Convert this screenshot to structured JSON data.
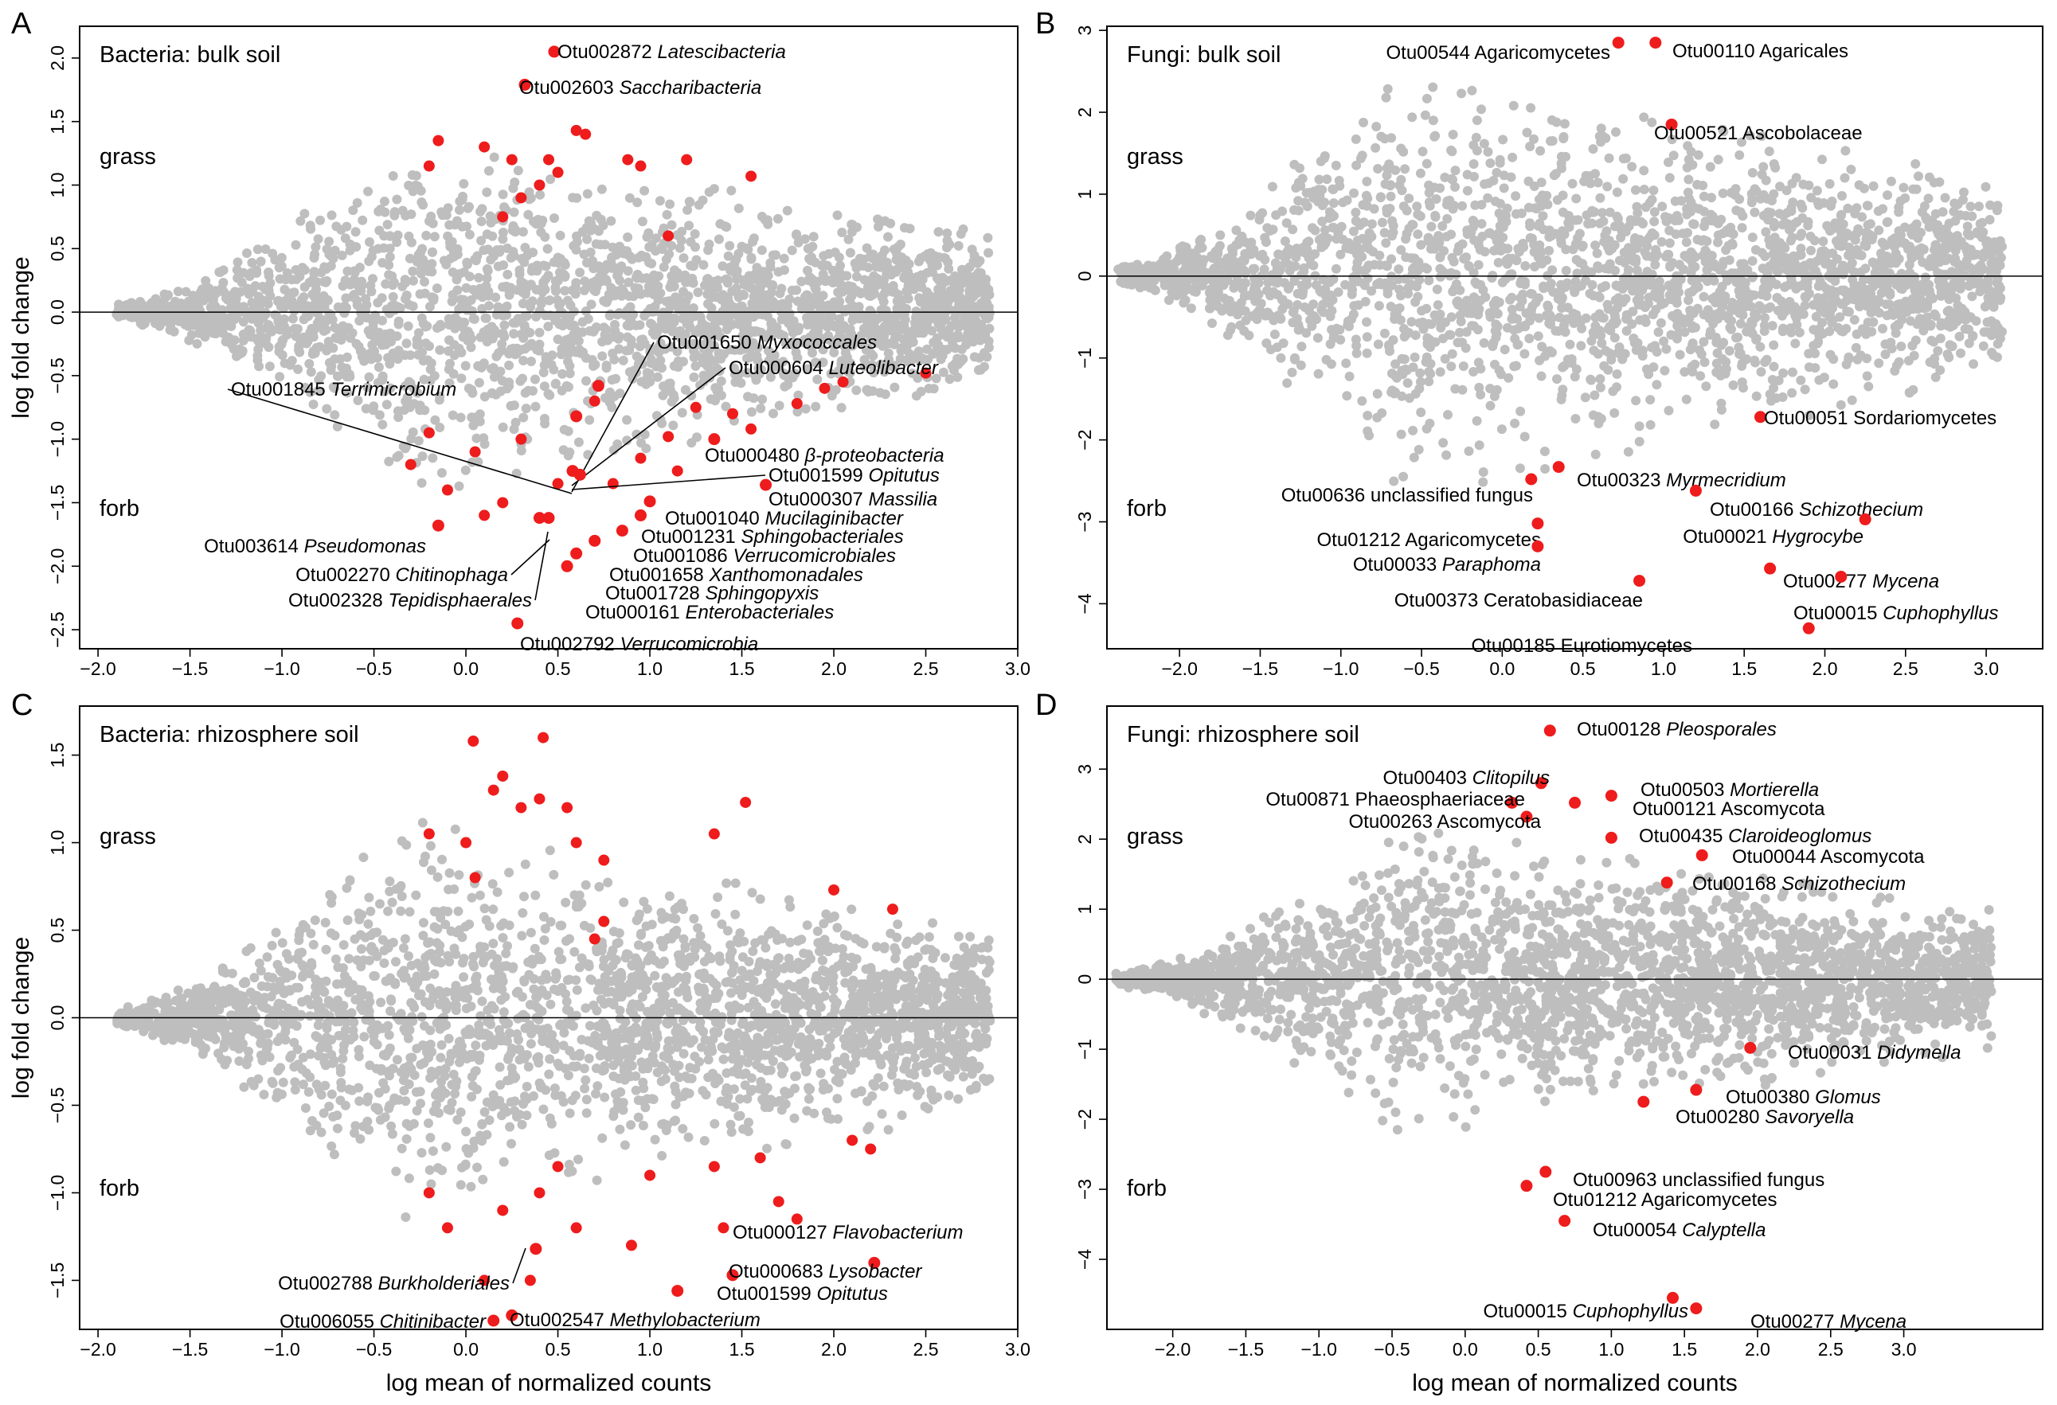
{
  "chart_data": [
    {
      "panel": "A",
      "type": "scatter",
      "title": "Bacteria: bulk soil",
      "xlabel": "",
      "ylabel": "log fold change",
      "xlim": [
        -2.1,
        3.0
      ],
      "ylim": [
        -2.65,
        2.25
      ],
      "xticks": [
        "-2.0",
        "-1.5",
        "-1.0",
        "-0.5",
        "0.0",
        "0.5",
        "1.0",
        "1.5",
        "2.0",
        "2.5",
        "3.0"
      ],
      "yticks": [
        "-2.5",
        "-2.0",
        "-1.5",
        "-1.0",
        "-0.5",
        "0.0",
        "0.5",
        "1.0",
        "1.5",
        "2.0"
      ],
      "group_labels": {
        "top": "grass",
        "bottom": "forb"
      },
      "background_cloud": {
        "x_min": -1.9,
        "x_max": 2.85,
        "ymax_at_peak": 1.4,
        "color": "#bebebe"
      },
      "highlighted": [
        {
          "x": 0.48,
          "y": 2.05,
          "label": "Otu002872",
          "taxon": "Latescibacteria",
          "italic": true
        },
        {
          "x": 0.32,
          "y": 1.79,
          "label": "Otu002603",
          "taxon": "Saccharibacteria",
          "italic": true
        },
        {
          "x": 0.6,
          "y": -0.82,
          "label": "Otu001650",
          "taxon": "Myxococcales",
          "italic": true
        },
        {
          "x": 0.72,
          "y": -0.58,
          "label": "Otu000604",
          "taxon": "Luteolibacter",
          "italic": true
        },
        {
          "x": 0.58,
          "y": -1.25,
          "label": "Otu001845",
          "taxon": "Terrimicrobium",
          "italic": true
        },
        {
          "x": 1.35,
          "y": -1.0,
          "label": "Otu000480",
          "taxon": "β-proteobacteria",
          "italic": true
        },
        {
          "x": 0.62,
          "y": -1.28,
          "label": "Otu001599",
          "taxon": "Opitutus",
          "italic": true
        },
        {
          "x": 1.63,
          "y": -1.36,
          "label": "Otu000307",
          "taxon": "Massilia",
          "italic": true
        },
        {
          "x": 1.0,
          "y": -1.49,
          "label": "Otu001040",
          "taxon": "Mucilaginibacter",
          "italic": true
        },
        {
          "x": 0.95,
          "y": -1.6,
          "label": "Otu001231",
          "taxon": "Sphingobacteriales",
          "italic": true
        },
        {
          "x": 0.85,
          "y": -1.72,
          "label": "Otu001086",
          "taxon": "Verrucomicrobiales",
          "italic": true
        },
        {
          "x": 0.7,
          "y": -1.8,
          "label": "Otu001658",
          "taxon": "Xanthomonadales",
          "italic": true
        },
        {
          "x": 0.6,
          "y": -1.9,
          "label": "Otu001728",
          "taxon": "Sphingopyxis",
          "italic": true
        },
        {
          "x": 0.55,
          "y": -2.0,
          "label": "Otu000161",
          "taxon": "Enterobacteriales",
          "italic": true
        },
        {
          "x": -0.15,
          "y": -1.68,
          "label": "Otu003614",
          "taxon": "Pseudomonas",
          "italic": true
        },
        {
          "x": 0.4,
          "y": -1.62,
          "label": "Otu002270",
          "taxon": "Chitinophaga",
          "italic": true
        },
        {
          "x": 0.45,
          "y": -1.62,
          "label": "Otu002328",
          "taxon": "Tepidisphaerales",
          "italic": true
        },
        {
          "x": 0.28,
          "y": -2.45,
          "label": "Otu002792",
          "taxon": "Verrucomicrobia",
          "italic": true
        }
      ],
      "extra_red": [
        [
          2.5,
          -0.48
        ],
        [
          2.05,
          -0.55
        ],
        [
          1.95,
          -0.6
        ],
        [
          1.8,
          -0.72
        ],
        [
          1.55,
          -0.92
        ],
        [
          1.1,
          -0.98
        ],
        [
          0.3,
          -1.0
        ],
        [
          0.05,
          -1.1
        ],
        [
          -0.1,
          -1.4
        ],
        [
          -0.3,
          -1.2
        ],
        [
          0.2,
          -1.5
        ],
        [
          0.8,
          -1.35
        ],
        [
          -0.2,
          -0.95
        ],
        [
          0.1,
          -1.6
        ],
        [
          1.55,
          1.07
        ],
        [
          1.2,
          1.2
        ],
        [
          0.88,
          1.2
        ],
        [
          0.95,
          1.15
        ],
        [
          0.65,
          1.4
        ],
        [
          0.6,
          1.43
        ],
        [
          0.45,
          1.2
        ],
        [
          0.25,
          1.2
        ],
        [
          0.1,
          1.3
        ],
        [
          -0.2,
          1.15
        ],
        [
          -0.15,
          1.35
        ],
        [
          0.3,
          0.9
        ],
        [
          0.5,
          1.1
        ],
        [
          0.2,
          0.75
        ],
        [
          1.1,
          0.6
        ],
        [
          0.4,
          1.0
        ],
        [
          0.7,
          -0.7
        ],
        [
          1.25,
          -0.75
        ],
        [
          1.45,
          -0.8
        ],
        [
          0.95,
          -1.15
        ],
        [
          1.15,
          -1.25
        ],
        [
          0.5,
          -1.35
        ]
      ]
    },
    {
      "panel": "B",
      "type": "scatter",
      "title": "Fungi: bulk soil",
      "xlabel": "",
      "ylabel": "",
      "xlim": [
        -2.45,
        3.35
      ],
      "ylim": [
        -4.55,
        3.05
      ],
      "xticks": [
        "-2.0",
        "-1.5",
        "-1.0",
        "-0.5",
        "0.0",
        "0.5",
        "1.0",
        "1.5",
        "2.0",
        "2.5",
        "3.0"
      ],
      "yticks": [
        "-4",
        "-3",
        "-2",
        "-1",
        "0",
        "1",
        "2",
        "3"
      ],
      "group_labels": {
        "top": "grass",
        "bottom": "forb"
      },
      "background_cloud": {
        "x_min": -2.4,
        "x_max": 3.1,
        "ymax_at_peak": 2.6,
        "color": "#bebebe"
      },
      "highlighted": [
        {
          "x": 0.72,
          "y": 2.85,
          "label": "Otu00544",
          "taxon": "Agaricomycetes",
          "italic": false
        },
        {
          "x": 0.95,
          "y": 2.85,
          "label": "Otu00110",
          "taxon": "Agaricales",
          "italic": false
        },
        {
          "x": 1.05,
          "y": 1.85,
          "label": "Otu00521",
          "taxon": "Ascobolaceae",
          "italic": false
        },
        {
          "x": 1.6,
          "y": -1.72,
          "label": "Otu00051",
          "taxon": "Sordariomycetes",
          "italic": false
        },
        {
          "x": 0.35,
          "y": -2.33,
          "label": "Otu00323",
          "taxon": "Myrmecridium",
          "italic": true
        },
        {
          "x": 0.18,
          "y": -2.48,
          "label": "Otu00636",
          "taxon": "unclassified fungus",
          "italic": false
        },
        {
          "x": 1.2,
          "y": -2.62,
          "label": "Otu00166",
          "taxon": "Schizothecium",
          "italic": true
        },
        {
          "x": 2.25,
          "y": -2.97,
          "label": "Otu00021",
          "taxon": "Hygrocybe",
          "italic": true
        },
        {
          "x": 0.22,
          "y": -3.02,
          "label": "Otu01212",
          "taxon": "Agaricomycetes",
          "italic": false
        },
        {
          "x": 0.22,
          "y": -3.3,
          "label": "Otu00033",
          "taxon": "Paraphoma",
          "italic": true
        },
        {
          "x": 1.66,
          "y": -3.57,
          "label": "Otu00277",
          "taxon": "Mycena",
          "italic": true
        },
        {
          "x": 0.85,
          "y": -3.72,
          "label": "Otu00373",
          "taxon": "Ceratobasidiaceae",
          "italic": false
        },
        {
          "x": 2.1,
          "y": -3.67,
          "label": "Otu00015",
          "taxon": "Cuphophyllus",
          "italic": true
        },
        {
          "x": 1.9,
          "y": -4.3,
          "label": "Otu00185",
          "taxon": "Eurotiomycetes",
          "italic": false
        }
      ],
      "extra_red": []
    },
    {
      "panel": "C",
      "type": "scatter",
      "title": "Bacteria: rhizosphere soil",
      "xlabel": "log mean of normalized counts",
      "ylabel": "log fold change",
      "xlim": [
        -2.1,
        3.0
      ],
      "ylim": [
        -1.78,
        1.78
      ],
      "xticks": [
        "-2.0",
        "-1.5",
        "-1.0",
        "-0.5",
        "0.0",
        "0.5",
        "1.0",
        "1.5",
        "2.0",
        "2.5",
        "3.0"
      ],
      "yticks": [
        "-1.5",
        "-1.0",
        "-0.5",
        "0.0",
        "0.5",
        "1.0",
        "1.5"
      ],
      "group_labels": {
        "top": "grass",
        "bottom": "forb"
      },
      "background_cloud": {
        "x_min": -1.9,
        "x_max": 2.85,
        "ymax_at_peak": 1.15,
        "color": "#bebebe"
      },
      "highlighted": [
        {
          "x": 2.22,
          "y": -1.4,
          "label": "Otu000127",
          "taxon": "Flavobacterium",
          "italic": true
        },
        {
          "x": 0.38,
          "y": -1.32,
          "label": "Otu002788",
          "taxon": "Burkholderiales",
          "italic": true
        },
        {
          "x": 1.45,
          "y": -1.47,
          "label": "Otu000683",
          "taxon": "Lysobacter",
          "italic": true
        },
        {
          "x": 1.15,
          "y": -1.56,
          "label": "Otu001599",
          "taxon": "Opitutus",
          "italic": true
        },
        {
          "x": 0.15,
          "y": -1.73,
          "label": "Otu006055",
          "taxon": "Chitinibacter",
          "italic": true
        },
        {
          "x": 0.25,
          "y": -1.7,
          "label": "Otu002547",
          "taxon": "Methylobacterium",
          "italic": true
        }
      ],
      "extra_red": [
        [
          0.04,
          1.58
        ],
        [
          0.42,
          1.6
        ],
        [
          1.52,
          1.23
        ],
        [
          1.35,
          1.05
        ],
        [
          2.0,
          0.73
        ],
        [
          2.32,
          0.62
        ],
        [
          0.2,
          1.38
        ],
        [
          0.15,
          1.3
        ],
        [
          0.3,
          1.2
        ],
        [
          0.55,
          1.2
        ],
        [
          0.0,
          1.0
        ],
        [
          -0.2,
          1.05
        ],
        [
          0.05,
          0.8
        ],
        [
          0.75,
          0.9
        ],
        [
          0.75,
          0.55
        ],
        [
          0.7,
          0.45
        ],
        [
          0.6,
          1.0
        ],
        [
          0.4,
          1.25
        ],
        [
          2.1,
          -0.7
        ],
        [
          2.2,
          -0.75
        ],
        [
          1.8,
          -1.15
        ],
        [
          1.7,
          -1.05
        ],
        [
          1.35,
          -0.85
        ],
        [
          1.0,
          -0.9
        ],
        [
          0.5,
          -0.85
        ],
        [
          0.4,
          -1.0
        ],
        [
          0.2,
          -1.1
        ],
        [
          -0.2,
          -1.0
        ],
        [
          -0.1,
          -1.2
        ],
        [
          0.6,
          -1.2
        ],
        [
          0.9,
          -1.3
        ],
        [
          0.1,
          -1.5
        ],
        [
          0.35,
          -1.5
        ],
        [
          1.4,
          -1.2
        ],
        [
          1.6,
          -0.8
        ]
      ]
    },
    {
      "panel": "D",
      "type": "scatter",
      "title": "Fungi: rhizosphere soil",
      "xlabel": "log mean of normalized counts",
      "ylabel": "",
      "xlim": [
        -2.45,
        3.95
      ],
      "ylim": [
        -5.0,
        3.9
      ],
      "xticks": [
        "-2.0",
        "-1.5",
        "-1.0",
        "-0.5",
        "0.0",
        "0.5",
        "1.0",
        "1.5",
        "2.0",
        "2.5",
        "3.0"
      ],
      "yticks": [
        "-4",
        "-3",
        "-2",
        "-1",
        "0",
        "1",
        "2",
        "3"
      ],
      "group_labels": {
        "top": "grass",
        "bottom": "forb"
      },
      "background_cloud": {
        "x_min": -2.4,
        "x_max": 3.6,
        "ymax_at_peak": 2.2,
        "color": "#bebebe"
      },
      "highlighted": [
        {
          "x": 0.58,
          "y": 3.55,
          "label": "Otu00128",
          "taxon": "Pleosporales",
          "italic": true
        },
        {
          "x": 0.52,
          "y": 2.8,
          "label": "Otu00403",
          "taxon": "Clitopilus",
          "italic": true
        },
        {
          "x": 1.0,
          "y": 2.62,
          "label": "Otu00503",
          "taxon": "Mortierella",
          "italic": true
        },
        {
          "x": 0.32,
          "y": 2.52,
          "label": "Otu00871",
          "taxon": "Phaeosphaeriaceae",
          "italic": false
        },
        {
          "x": 0.75,
          "y": 2.52,
          "label": "Otu00121",
          "taxon": "Ascomycota",
          "italic": false
        },
        {
          "x": 0.42,
          "y": 2.32,
          "label": "Otu00263",
          "taxon": "Ascomycota",
          "italic": false
        },
        {
          "x": 1.0,
          "y": 2.02,
          "label": "Otu00435",
          "taxon": "Claroideoglomus",
          "italic": true
        },
        {
          "x": 1.62,
          "y": 1.77,
          "label": "Otu00044",
          "taxon": "Ascomycota",
          "italic": false
        },
        {
          "x": 1.38,
          "y": 1.38,
          "label": "Otu00168",
          "taxon": "Schizothecium",
          "italic": true
        },
        {
          "x": 1.95,
          "y": -0.98,
          "label": "Otu00031",
          "taxon": "Didymella",
          "italic": true
        },
        {
          "x": 1.58,
          "y": -1.58,
          "label": "Otu00380",
          "taxon": "Glomus",
          "italic": true
        },
        {
          "x": 1.22,
          "y": -1.75,
          "label": "Otu00280",
          "taxon": "Savoryella",
          "italic": true
        },
        {
          "x": 0.55,
          "y": -2.75,
          "label": "Otu00963",
          "taxon": "unclassified fungus",
          "italic": false
        },
        {
          "x": 0.42,
          "y": -2.95,
          "label": "Otu01212",
          "taxon": "Agaricomycetes",
          "italic": false
        },
        {
          "x": 0.68,
          "y": -3.45,
          "label": "Otu00054",
          "taxon": "Calyptella",
          "italic": true
        },
        {
          "x": 1.42,
          "y": -4.55,
          "label": "Otu00015",
          "taxon": "Cuphophyllus",
          "italic": true
        },
        {
          "x": 1.58,
          "y": -4.7,
          "label": "Otu00277",
          "taxon": "Mycena",
          "italic": true
        }
      ],
      "extra_red": []
    }
  ],
  "colors": {
    "background_points": "#bebebe",
    "highlight_points": "#ee1c1c",
    "axis": "#000000"
  }
}
